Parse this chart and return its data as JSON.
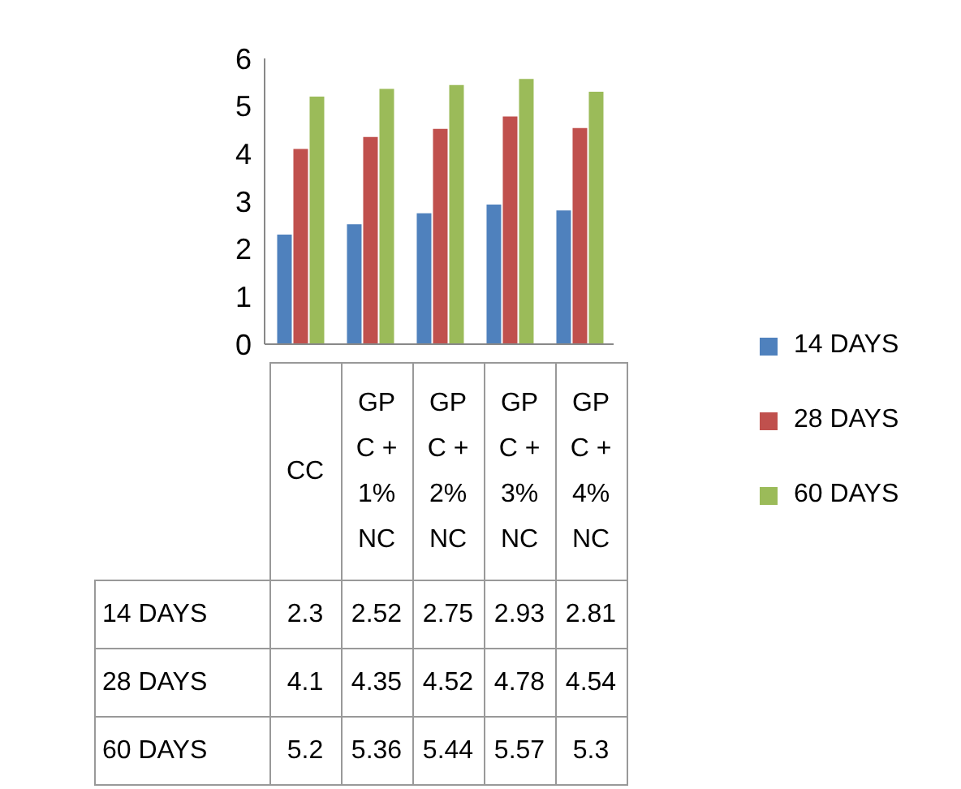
{
  "chart_data": {
    "type": "bar",
    "categories": [
      "CC",
      "GP C + 1% NC",
      "GP C + 2% NC",
      "GP C + 3% NC",
      "GP C + 4% NC"
    ],
    "series": [
      {
        "name": "14 DAYS",
        "color": "#4f81bd",
        "values": [
          2.3,
          2.52,
          2.75,
          2.93,
          2.81
        ]
      },
      {
        "name": "28 DAYS",
        "color": "#c0504d",
        "values": [
          4.1,
          4.35,
          4.52,
          4.78,
          4.54
        ]
      },
      {
        "name": "60 DAYS",
        "color": "#9bbb59",
        "values": [
          5.2,
          5.36,
          5.44,
          5.57,
          5.3
        ]
      }
    ],
    "ylim": [
      0,
      6
    ],
    "yticks": [
      0,
      1,
      2,
      3,
      4,
      5,
      6
    ],
    "grid": false,
    "legend": "right",
    "data_labels": true
  }
}
